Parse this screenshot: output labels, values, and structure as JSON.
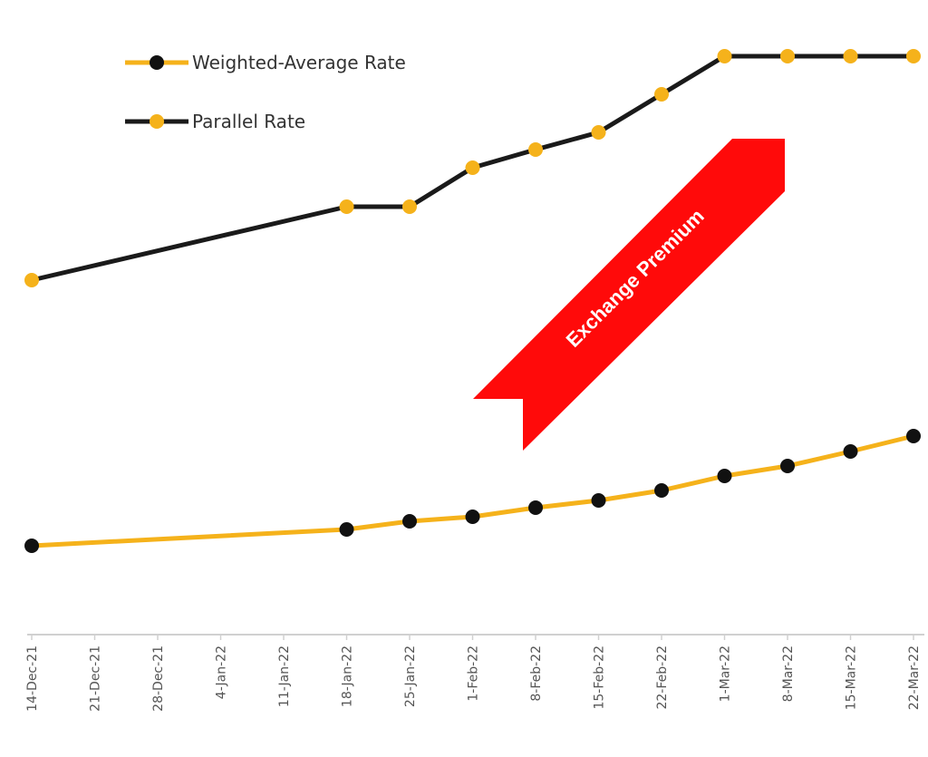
{
  "chart_data": {
    "type": "line",
    "title": "",
    "xlabel": "",
    "ylabel": "",
    "ylim": [
      0,
      70
    ],
    "y_units": "relative (no y-axis shown; values estimated)",
    "grid": false,
    "legend_position": "top-left",
    "categories": [
      "14-Dec-21",
      "21-Dec-21",
      "28-Dec-21",
      "4-Jan-22",
      "11-Jan-22",
      "18-Jan-22",
      "25-Jan-22",
      "1-Feb-22",
      "8-Feb-22",
      "15-Feb-22",
      "22-Feb-22",
      "1-Mar-22",
      "8-Mar-22",
      "15-Mar-22",
      "22-Mar-22"
    ],
    "series": [
      {
        "name": "Weighted-Average Rate",
        "line_color": "#F5B21B",
        "marker_color": "#111111",
        "values": [
          9.8,
          null,
          null,
          null,
          null,
          11.6,
          12.5,
          13.0,
          14.0,
          14.8,
          15.9,
          17.5,
          18.6,
          20.2,
          21.9
        ]
      },
      {
        "name": "Parallel Rate",
        "line_color": "#1a1a1a",
        "marker_color": "#F5B21B",
        "values": [
          39.1,
          null,
          null,
          null,
          null,
          47.2,
          47.2,
          51.5,
          53.5,
          55.4,
          59.6,
          63.8,
          63.8,
          63.8,
          63.8
        ]
      }
    ],
    "annotations": [
      {
        "text": "Exchange Premium",
        "type": "arrow",
        "color": "#FF0A0A"
      }
    ]
  }
}
